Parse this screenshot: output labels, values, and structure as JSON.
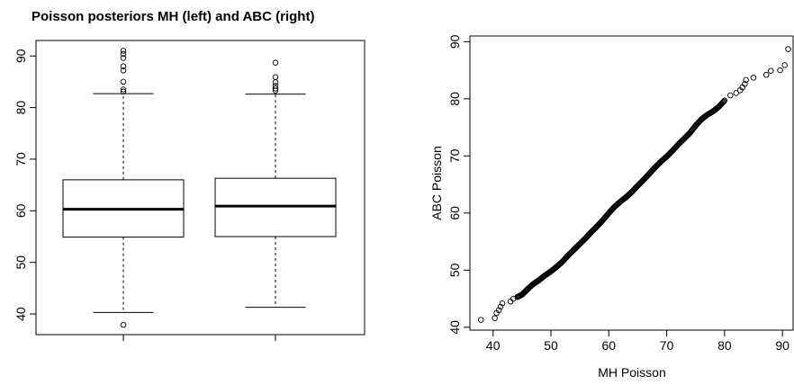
{
  "title": "Poisson posteriors MH (left) and ABC (right)",
  "chart_data": [
    {
      "type": "boxplot",
      "title": "Poisson posteriors MH (left) and ABC (right)",
      "xlabel": "",
      "ylabel": "",
      "ylim": [
        36,
        93
      ],
      "yticks": [
        40,
        50,
        60,
        70,
        80,
        90
      ],
      "boxes": [
        {
          "group": "MH",
          "min": 40.3,
          "q1": 54.9,
          "median": 60.3,
          "q3": 66.0,
          "max": 82.7,
          "outliers": [
            37.9,
            83.1,
            83.5,
            85.0,
            87.2,
            88.0,
            89.6,
            90.4,
            91.0
          ]
        },
        {
          "group": "ABC",
          "min": 41.3,
          "q1": 55.0,
          "median": 60.9,
          "q3": 66.3,
          "max": 82.6,
          "outliers": [
            83.3,
            83.7,
            84.2,
            84.9,
            85.9,
            88.7
          ]
        }
      ]
    },
    {
      "type": "scatter",
      "title": "",
      "xlabel": "MH Poisson",
      "ylabel": "ABC Poisson",
      "xlim": [
        36,
        92
      ],
      "ylim": [
        39.5,
        91
      ],
      "xticks": [
        40,
        50,
        60,
        70,
        80,
        90
      ],
      "yticks": [
        40,
        50,
        60,
        70,
        80,
        90
      ],
      "points": [
        [
          37.9,
          41.3
        ],
        [
          40.3,
          41.6
        ],
        [
          40.6,
          42.5
        ],
        [
          41.0,
          43.0
        ],
        [
          41.3,
          43.6
        ],
        [
          41.6,
          44.2
        ],
        [
          43.0,
          44.5
        ],
        [
          43.5,
          45.0
        ],
        [
          44.2,
          45.3
        ],
        [
          45.0,
          45.7
        ],
        [
          45.6,
          46.3
        ],
        [
          46.3,
          47.0
        ],
        [
          47.0,
          47.6
        ],
        [
          48.0,
          48.3
        ],
        [
          49.0,
          49.1
        ],
        [
          50.0,
          49.8
        ],
        [
          51.0,
          50.6
        ],
        [
          52.0,
          51.5
        ],
        [
          53.0,
          52.6
        ],
        [
          54.0,
          53.6
        ],
        [
          55.0,
          54.6
        ],
        [
          56.0,
          55.6
        ],
        [
          57.0,
          56.7
        ],
        [
          58.0,
          57.7
        ],
        [
          59.0,
          58.8
        ],
        [
          60.0,
          60.0
        ],
        [
          61.0,
          61.1
        ],
        [
          62.0,
          62.0
        ],
        [
          63.0,
          62.8
        ],
        [
          64.0,
          63.7
        ],
        [
          65.0,
          64.8
        ],
        [
          66.0,
          65.8
        ],
        [
          67.0,
          66.9
        ],
        [
          68.0,
          68.0
        ],
        [
          69.0,
          69.0
        ],
        [
          70.0,
          69.9
        ],
        [
          71.0,
          70.9
        ],
        [
          72.0,
          72.0
        ],
        [
          73.0,
          73.0
        ],
        [
          74.0,
          74.0
        ],
        [
          75.0,
          75.3
        ],
        [
          76.0,
          76.4
        ],
        [
          77.0,
          77.2
        ],
        [
          78.0,
          77.8
        ],
        [
          79.0,
          78.6
        ],
        [
          80.0,
          79.7
        ],
        [
          81.0,
          80.6
        ],
        [
          82.0,
          81.0
        ],
        [
          82.7,
          81.5
        ],
        [
          83.1,
          82.0
        ],
        [
          83.5,
          82.6
        ],
        [
          83.7,
          83.3
        ],
        [
          85.0,
          83.7
        ],
        [
          87.2,
          84.2
        ],
        [
          88.0,
          84.9
        ],
        [
          89.6,
          85.0
        ],
        [
          90.4,
          85.9
        ],
        [
          91.0,
          88.7
        ]
      ]
    }
  ]
}
